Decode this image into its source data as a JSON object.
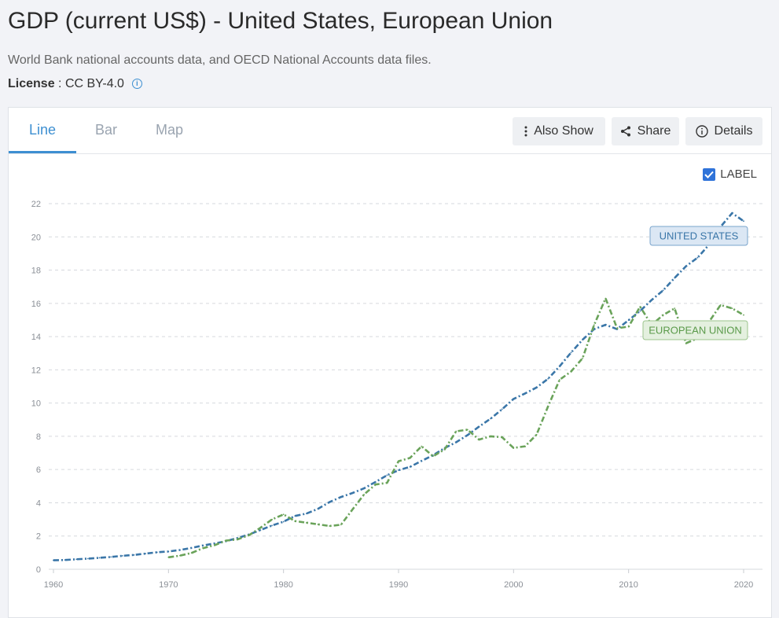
{
  "page": {
    "title": "GDP (current US$) - United States, European Union",
    "source": "World Bank national accounts data, and OECD National Accounts data files.",
    "license_label": "License",
    "license_sep": " : ",
    "license_value": "CC BY-4.0",
    "info_icon": "info-icon"
  },
  "tabs": [
    {
      "label": "Line",
      "active": true
    },
    {
      "label": "Bar",
      "active": false
    },
    {
      "label": "Map",
      "active": false
    }
  ],
  "toolbar": {
    "also_show_label": "Also Show",
    "share_label": "Share",
    "details_label": "Details",
    "also_show_icon": "vertical-dots-icon",
    "share_icon": "share-icon",
    "details_icon": "info-circle-icon"
  },
  "label_toggle": {
    "label": "LABEL",
    "checked": true
  },
  "colors": {
    "accent": "#3d8fd1",
    "us": "#3a76a8",
    "eu": "#6aa35a"
  },
  "chart_data": {
    "type": "line",
    "title": "GDP (current US$) - United States, European Union",
    "xlabel": "",
    "ylabel": "",
    "xlim": [
      1960,
      2020
    ],
    "ylim": [
      0,
      22
    ],
    "xticks": [
      1960,
      1970,
      1980,
      1990,
      2000,
      2010,
      2020
    ],
    "yticks": [
      0,
      2,
      4,
      6,
      8,
      10,
      12,
      14,
      16,
      18,
      20,
      22
    ],
    "grid": true,
    "series": [
      {
        "name": "UNITED STATES",
        "color": "#3a76a8",
        "x": [
          1960,
          1961,
          1962,
          1963,
          1964,
          1965,
          1966,
          1967,
          1968,
          1969,
          1970,
          1971,
          1972,
          1973,
          1974,
          1975,
          1976,
          1977,
          1978,
          1979,
          1980,
          1981,
          1982,
          1983,
          1984,
          1985,
          1986,
          1987,
          1988,
          1989,
          1990,
          1991,
          1992,
          1993,
          1994,
          1995,
          1996,
          1997,
          1998,
          1999,
          2000,
          2001,
          2002,
          2003,
          2004,
          2005,
          2006,
          2007,
          2008,
          2009,
          2010,
          2011,
          2012,
          2013,
          2014,
          2015,
          2016,
          2017,
          2018,
          2019,
          2020
        ],
        "values": [
          0.54,
          0.56,
          0.6,
          0.64,
          0.69,
          0.74,
          0.81,
          0.86,
          0.94,
          1.02,
          1.07,
          1.16,
          1.28,
          1.43,
          1.55,
          1.69,
          1.88,
          2.09,
          2.36,
          2.63,
          2.86,
          3.21,
          3.35,
          3.64,
          4.04,
          4.35,
          4.59,
          4.87,
          5.25,
          5.66,
          5.96,
          6.16,
          6.52,
          6.86,
          7.29,
          7.64,
          8.07,
          8.58,
          9.06,
          9.63,
          10.25,
          10.58,
          10.94,
          11.46,
          12.21,
          13.04,
          13.81,
          14.45,
          14.71,
          14.45,
          14.99,
          15.54,
          16.2,
          16.78,
          17.53,
          18.24,
          18.75,
          19.54,
          20.61,
          21.43,
          20.95
        ]
      },
      {
        "name": "EUROPEAN UNION",
        "color": "#6aa35a",
        "x": [
          1970,
          1971,
          1972,
          1973,
          1974,
          1975,
          1976,
          1977,
          1978,
          1979,
          1980,
          1981,
          1982,
          1983,
          1984,
          1985,
          1986,
          1987,
          1988,
          1989,
          1990,
          1991,
          1992,
          1993,
          1994,
          1995,
          1996,
          1997,
          1998,
          1999,
          2000,
          2001,
          2002,
          2003,
          2004,
          2005,
          2006,
          2007,
          2008,
          2009,
          2010,
          2011,
          2012,
          2013,
          2014,
          2015,
          2016,
          2017,
          2018,
          2019,
          2020
        ],
        "values": [
          0.72,
          0.82,
          0.98,
          1.27,
          1.45,
          1.72,
          1.8,
          2.05,
          2.5,
          3.0,
          3.3,
          2.9,
          2.8,
          2.7,
          2.6,
          2.68,
          3.6,
          4.5,
          5.1,
          5.2,
          6.5,
          6.7,
          7.4,
          6.8,
          7.2,
          8.3,
          8.4,
          7.8,
          8.0,
          7.95,
          7.3,
          7.4,
          8.1,
          9.8,
          11.4,
          11.9,
          12.7,
          14.7,
          16.3,
          14.5,
          14.6,
          15.8,
          14.7,
          15.3,
          15.7,
          13.6,
          13.9,
          14.9,
          15.9,
          15.7,
          15.3
        ]
      }
    ],
    "labels": [
      {
        "series": "UNITED STATES",
        "text": "UNITED STATES"
      },
      {
        "series": "EUROPEAN UNION",
        "text": "EUROPEAN UNION"
      }
    ]
  }
}
